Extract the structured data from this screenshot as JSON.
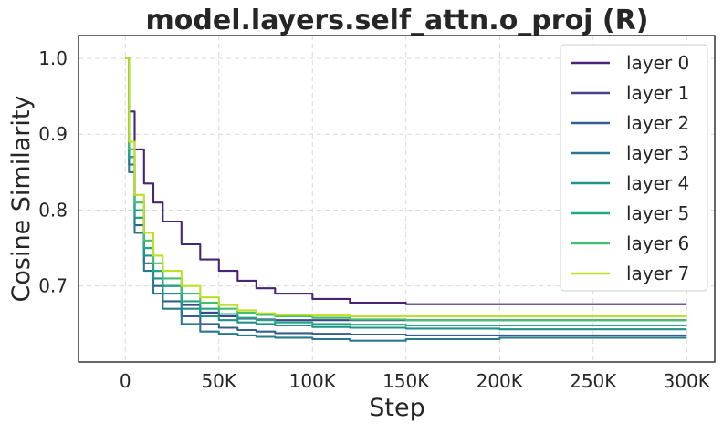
{
  "chart_data": {
    "type": "line",
    "title": "model.layers.self_attn.o_proj (R)",
    "xlabel": "Step",
    "ylabel": "Cosine Similarity",
    "xlim": [
      -25000,
      315000
    ],
    "ylim": [
      0.6,
      1.03
    ],
    "x_ticks": [
      0,
      50000,
      100000,
      150000,
      200000,
      250000,
      300000
    ],
    "x_tick_labels": [
      "0",
      "50K",
      "100K",
      "150K",
      "200K",
      "250K",
      "300K"
    ],
    "y_ticks": [
      0.7,
      0.8,
      0.9,
      1.0
    ],
    "y_tick_labels": [
      "0.7",
      "0.8",
      "0.9",
      "1.0"
    ],
    "grid": true,
    "legend_position": "top-right",
    "series": [
      {
        "name": "layer 0",
        "color": "#482475",
        "x": [
          0,
          2000,
          5000,
          10000,
          15000,
          20000,
          30000,
          40000,
          50000,
          60000,
          70000,
          80000,
          100000,
          120000,
          150000,
          200000,
          250000,
          300000
        ],
        "y": [
          1.0,
          0.93,
          0.88,
          0.835,
          0.81,
          0.785,
          0.755,
          0.735,
          0.72,
          0.707,
          0.697,
          0.69,
          0.683,
          0.678,
          0.676,
          0.676,
          0.676,
          0.676
        ]
      },
      {
        "name": "layer 1",
        "color": "#414487",
        "x": [
          0,
          2000,
          5000,
          10000,
          15000,
          20000,
          30000,
          40000,
          50000,
          60000,
          70000,
          80000,
          100000,
          120000,
          150000,
          200000,
          250000,
          300000
        ],
        "y": [
          1.0,
          0.88,
          0.8,
          0.75,
          0.72,
          0.7,
          0.675,
          0.665,
          0.66,
          0.657,
          0.656,
          0.655,
          0.655,
          0.655,
          0.655,
          0.655,
          0.655,
          0.655
        ]
      },
      {
        "name": "layer 2",
        "color": "#355f8d",
        "x": [
          0,
          2000,
          5000,
          10000,
          15000,
          20000,
          30000,
          40000,
          50000,
          60000,
          70000,
          80000,
          100000,
          120000,
          150000,
          200000,
          250000,
          300000
        ],
        "y": [
          1.0,
          0.86,
          0.78,
          0.73,
          0.7,
          0.68,
          0.66,
          0.65,
          0.645,
          0.642,
          0.64,
          0.638,
          0.637,
          0.636,
          0.635,
          0.635,
          0.635,
          0.635
        ]
      },
      {
        "name": "layer 3",
        "color": "#2a788e",
        "x": [
          0,
          2000,
          5000,
          10000,
          15000,
          20000,
          30000,
          40000,
          50000,
          60000,
          70000,
          80000,
          100000,
          120000,
          150000,
          200000,
          250000,
          300000
        ],
        "y": [
          1.0,
          0.85,
          0.77,
          0.72,
          0.69,
          0.67,
          0.65,
          0.64,
          0.637,
          0.635,
          0.633,
          0.632,
          0.63,
          0.628,
          0.63,
          0.632,
          0.632,
          0.632
        ]
      },
      {
        "name": "layer 4",
        "color": "#21918c",
        "x": [
          0,
          2000,
          5000,
          10000,
          15000,
          20000,
          30000,
          40000,
          50000,
          60000,
          70000,
          80000,
          100000,
          120000,
          150000,
          200000,
          250000,
          300000
        ],
        "y": [
          1.0,
          0.87,
          0.79,
          0.74,
          0.71,
          0.69,
          0.67,
          0.66,
          0.655,
          0.652,
          0.65,
          0.648,
          0.646,
          0.645,
          0.644,
          0.643,
          0.643,
          0.643
        ]
      },
      {
        "name": "layer 5",
        "color": "#22a884",
        "x": [
          0,
          2000,
          5000,
          10000,
          15000,
          20000,
          30000,
          40000,
          50000,
          60000,
          70000,
          80000,
          100000,
          120000,
          150000,
          200000,
          250000,
          300000
        ],
        "y": [
          1.0,
          0.87,
          0.8,
          0.75,
          0.72,
          0.7,
          0.68,
          0.67,
          0.663,
          0.658,
          0.655,
          0.652,
          0.65,
          0.649,
          0.648,
          0.648,
          0.648,
          0.648
        ]
      },
      {
        "name": "layer 6",
        "color": "#44bf70",
        "x": [
          0,
          2000,
          5000,
          10000,
          15000,
          20000,
          30000,
          40000,
          50000,
          60000,
          70000,
          80000,
          100000,
          120000,
          150000,
          200000,
          250000,
          300000
        ],
        "y": [
          1.0,
          0.88,
          0.81,
          0.76,
          0.73,
          0.71,
          0.69,
          0.678,
          0.67,
          0.665,
          0.662,
          0.66,
          0.658,
          0.656,
          0.655,
          0.655,
          0.655,
          0.655
        ]
      },
      {
        "name": "layer 7",
        "color": "#bddf26",
        "x": [
          0,
          2000,
          5000,
          10000,
          15000,
          20000,
          30000,
          40000,
          50000,
          60000,
          70000,
          80000,
          100000,
          120000,
          150000,
          200000,
          250000,
          300000
        ],
        "y": [
          1.0,
          0.89,
          0.82,
          0.77,
          0.74,
          0.72,
          0.7,
          0.685,
          0.675,
          0.668,
          0.664,
          0.662,
          0.661,
          0.66,
          0.66,
          0.66,
          0.66,
          0.66
        ]
      }
    ]
  }
}
